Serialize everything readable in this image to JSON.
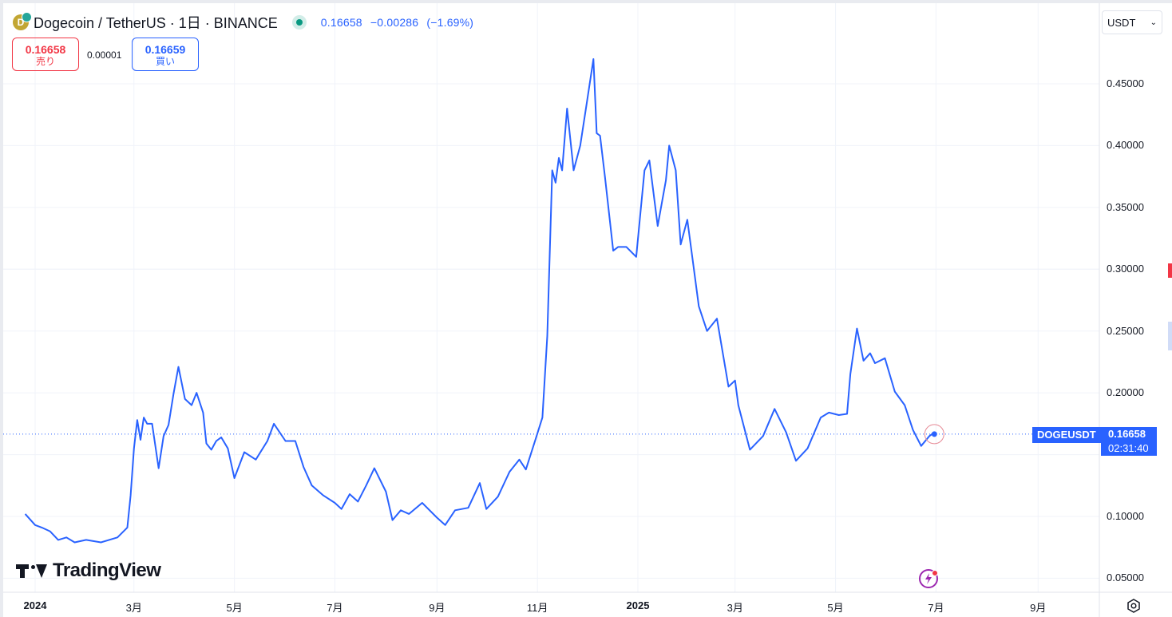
{
  "header": {
    "symbol_title": "Dogecoin / TetherUS · 1日 · BINANCE",
    "last_price": "0.16658",
    "change": "−0.00286",
    "change_pct": "(−1.69%)"
  },
  "trade": {
    "sell_price": "0.16658",
    "sell_label": "売り",
    "spread": "0.00001",
    "buy_price": "0.16659",
    "buy_label": "買い"
  },
  "currency_selector": {
    "value": "USDT"
  },
  "price_axis": {
    "ticks": [
      "0.45000",
      "0.40000",
      "0.35000",
      "0.30000",
      "0.25000",
      "0.20000",
      "0.10000",
      "0.05000"
    ]
  },
  "time_axis": {
    "ticks": [
      {
        "label": "2024",
        "bold": true
      },
      {
        "label": "3月",
        "bold": false
      },
      {
        "label": "5月",
        "bold": false
      },
      {
        "label": "7月",
        "bold": false
      },
      {
        "label": "9月",
        "bold": false
      },
      {
        "label": "11月",
        "bold": false
      },
      {
        "label": "2025",
        "bold": true
      },
      {
        "label": "3月",
        "bold": false
      },
      {
        "label": "5月",
        "bold": false
      },
      {
        "label": "7月",
        "bold": false
      },
      {
        "label": "9月",
        "bold": false
      }
    ]
  },
  "last_price_marker": {
    "symbol": "DOGEUSDT",
    "price": "0.16658",
    "countdown": "02:31:40"
  },
  "branding": {
    "logo_text": "TradingView"
  },
  "colors": {
    "line": "#2962ff",
    "buy": "#2962ff",
    "sell": "#f23645",
    "grid": "#f0f3fa",
    "live": "#089981"
  },
  "chart_data": {
    "type": "line",
    "title": "Dogecoin / TetherUS · 1日 · BINANCE",
    "xlabel": "",
    "ylabel": "",
    "ylim": [
      0.03,
      0.48
    ],
    "xlim": [
      "2023-12-26",
      "2025-10-06"
    ],
    "grid": true,
    "series": [
      {
        "name": "DOGEUSDT",
        "x": [
          "2023-12-26",
          "2024-01-01",
          "2024-01-05",
          "2024-01-10",
          "2024-01-15",
          "2024-01-20",
          "2024-01-25",
          "2024-02-01",
          "2024-02-10",
          "2024-02-20",
          "2024-02-26",
          "2024-02-28",
          "2024-03-01",
          "2024-03-03",
          "2024-03-05",
          "2024-03-07",
          "2024-03-09",
          "2024-03-12",
          "2024-03-16",
          "2024-03-19",
          "2024-03-22",
          "2024-03-25",
          "2024-03-28",
          "2024-04-01",
          "2024-04-05",
          "2024-04-08",
          "2024-04-12",
          "2024-04-14",
          "2024-04-17",
          "2024-04-20",
          "2024-04-23",
          "2024-04-27",
          "2024-05-01",
          "2024-05-07",
          "2024-05-14",
          "2024-05-21",
          "2024-05-25",
          "2024-06-01",
          "2024-06-07",
          "2024-06-12",
          "2024-06-17",
          "2024-06-24",
          "2024-07-01",
          "2024-07-05",
          "2024-07-10",
          "2024-07-15",
          "2024-07-20",
          "2024-07-25",
          "2024-08-01",
          "2024-08-05",
          "2024-08-10",
          "2024-08-15",
          "2024-08-23",
          "2024-09-01",
          "2024-09-06",
          "2024-09-12",
          "2024-09-20",
          "2024-09-27",
          "2024-10-01",
          "2024-10-08",
          "2024-10-15",
          "2024-10-21",
          "2024-10-25",
          "2024-10-31",
          "2024-11-04",
          "2024-11-07",
          "2024-11-10",
          "2024-11-12",
          "2024-11-14",
          "2024-11-16",
          "2024-11-19",
          "2024-11-23",
          "2024-11-27",
          "2024-12-01",
          "2024-12-05",
          "2024-12-07",
          "2024-12-09",
          "2024-12-12",
          "2024-12-17",
          "2024-12-20",
          "2024-12-25",
          "2024-12-31",
          "2025-01-05",
          "2025-01-08",
          "2025-01-13",
          "2025-01-18",
          "2025-01-20",
          "2025-01-24",
          "2025-01-27",
          "2025-01-31",
          "2025-02-03",
          "2025-02-07",
          "2025-02-12",
          "2025-02-18",
          "2025-02-25",
          "2025-03-01",
          "2025-03-03",
          "2025-03-10",
          "2025-03-18",
          "2025-03-25",
          "2025-04-01",
          "2025-04-07",
          "2025-04-14",
          "2025-04-22",
          "2025-04-27",
          "2025-05-03",
          "2025-05-08",
          "2025-05-10",
          "2025-05-14",
          "2025-05-18",
          "2025-05-22",
          "2025-05-25",
          "2025-05-31",
          "2025-06-06",
          "2025-06-12",
          "2025-06-17",
          "2025-06-22",
          "2025-06-27",
          "2025-06-30"
        ],
        "values": [
          0.102,
          0.093,
          0.091,
          0.088,
          0.081,
          0.083,
          0.079,
          0.081,
          0.079,
          0.083,
          0.091,
          0.117,
          0.155,
          0.178,
          0.162,
          0.18,
          0.175,
          0.175,
          0.139,
          0.165,
          0.174,
          0.199,
          0.221,
          0.195,
          0.19,
          0.2,
          0.184,
          0.159,
          0.154,
          0.161,
          0.164,
          0.155,
          0.131,
          0.152,
          0.146,
          0.161,
          0.175,
          0.161,
          0.161,
          0.14,
          0.125,
          0.117,
          0.111,
          0.106,
          0.118,
          0.112,
          0.125,
          0.139,
          0.12,
          0.097,
          0.105,
          0.102,
          0.111,
          0.099,
          0.093,
          0.105,
          0.107,
          0.127,
          0.106,
          0.116,
          0.136,
          0.146,
          0.138,
          0.163,
          0.18,
          0.246,
          0.38,
          0.37,
          0.39,
          0.38,
          0.43,
          0.38,
          0.4,
          0.435,
          0.47,
          0.41,
          0.408,
          0.375,
          0.315,
          0.318,
          0.318,
          0.31,
          0.38,
          0.388,
          0.335,
          0.372,
          0.4,
          0.38,
          0.32,
          0.34,
          0.31,
          0.27,
          0.25,
          0.26,
          0.205,
          0.21,
          0.19,
          0.154,
          0.165,
          0.187,
          0.168,
          0.145,
          0.155,
          0.18,
          0.184,
          0.182,
          0.183,
          0.215,
          0.252,
          0.226,
          0.232,
          0.224,
          0.228,
          0.201,
          0.19,
          0.17,
          0.157,
          0.165,
          0.168
        ]
      }
    ],
    "last_value": 0.16658
  }
}
